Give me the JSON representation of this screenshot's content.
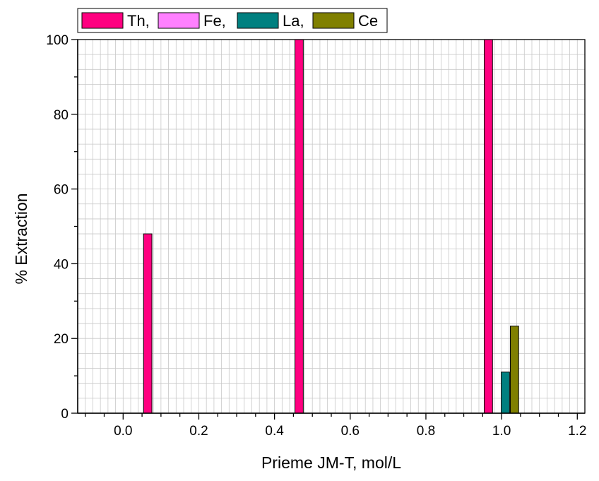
{
  "chart_data": {
    "type": "bar",
    "title": "",
    "xlabel": "Prieme JM-T, mol/L",
    "ylabel": "% Extraction",
    "xlim": [
      -0.12,
      1.22
    ],
    "ylim": [
      0,
      100
    ],
    "x_ticks": [
      0.0,
      0.2,
      0.4,
      0.6,
      0.8,
      1.0,
      1.2
    ],
    "x_tick_labels": [
      "0.0",
      "0.2",
      "0.4",
      "0.6",
      "0.8",
      "1.0",
      "1.2"
    ],
    "y_ticks": [
      0,
      20,
      40,
      60,
      80,
      100
    ],
    "y_tick_labels": [
      "0",
      "20",
      "40",
      "60",
      "80",
      "100"
    ],
    "grid": true,
    "legend_position": "top-left",
    "bar_width": 0.022,
    "series": [
      {
        "name": "Th,",
        "color": "#ff0080",
        "points": [
          {
            "x": 0.065,
            "y": 48
          },
          {
            "x": 0.465,
            "y": 100
          },
          {
            "x": 0.965,
            "y": 100
          }
        ]
      },
      {
        "name": "Fe,",
        "color": "#ff80ff",
        "points": []
      },
      {
        "name": "La,",
        "color": "#008080",
        "points": [
          {
            "x": 1.01,
            "y": 11
          }
        ]
      },
      {
        "name": "Ce",
        "color": "#808000",
        "points": [
          {
            "x": 1.034,
            "y": 23.3
          }
        ]
      }
    ]
  }
}
